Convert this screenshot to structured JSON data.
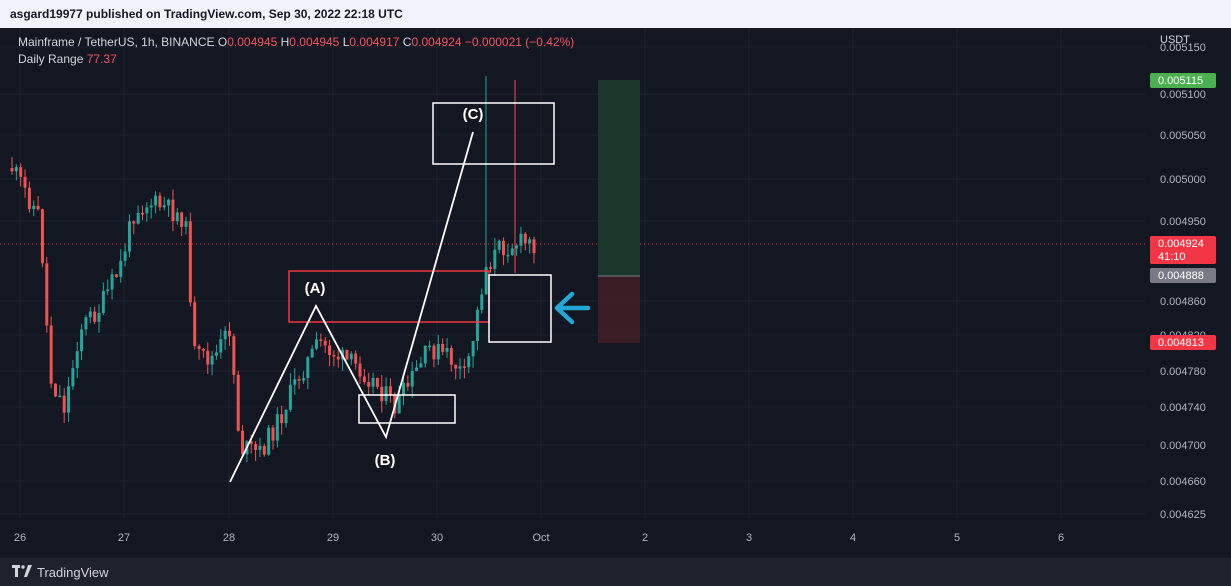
{
  "header": {
    "text": "asgard19977 published on TradingView.com, Sep 30, 2022 22:18 UTC"
  },
  "legend": {
    "symbol": "Mainframe / TetherUS, 1h, BINANCE",
    "o_label": "O",
    "o": "0.004945",
    "h_label": "H",
    "h": "0.004945",
    "l_label": "L",
    "l": "0.004917",
    "c_label": "C",
    "c": "0.004924",
    "change": "−0.000021 (−0.42%)",
    "indicator_name": "Daily Range",
    "indicator_value": "77.37"
  },
  "price_axis": {
    "currency": "USDT",
    "ticks": [
      "0.005150",
      "0.005100",
      "0.005050",
      "0.005000",
      "0.004950",
      "0.004860",
      "0.004820",
      "0.004780",
      "0.004740",
      "0.004700",
      "0.004660",
      "0.004625"
    ],
    "badges": [
      {
        "label": "0.005115",
        "color": "#4caf50"
      },
      {
        "label": "0.004924",
        "sub": "41:10",
        "color": "#f23645"
      },
      {
        "label": "0.004888",
        "color": "#787b86"
      },
      {
        "label": "0.004813",
        "color": "#f23645"
      }
    ]
  },
  "time_axis": {
    "ticks": [
      "26",
      "27",
      "28",
      "29",
      "30",
      "Oct",
      "2",
      "3",
      "4",
      "5",
      "6"
    ]
  },
  "annotations": {
    "a": "(A)",
    "b": "(B)",
    "c": "(C)"
  },
  "footer": {
    "brand": "TradingView",
    "logo": "tradingview-logo"
  }
}
